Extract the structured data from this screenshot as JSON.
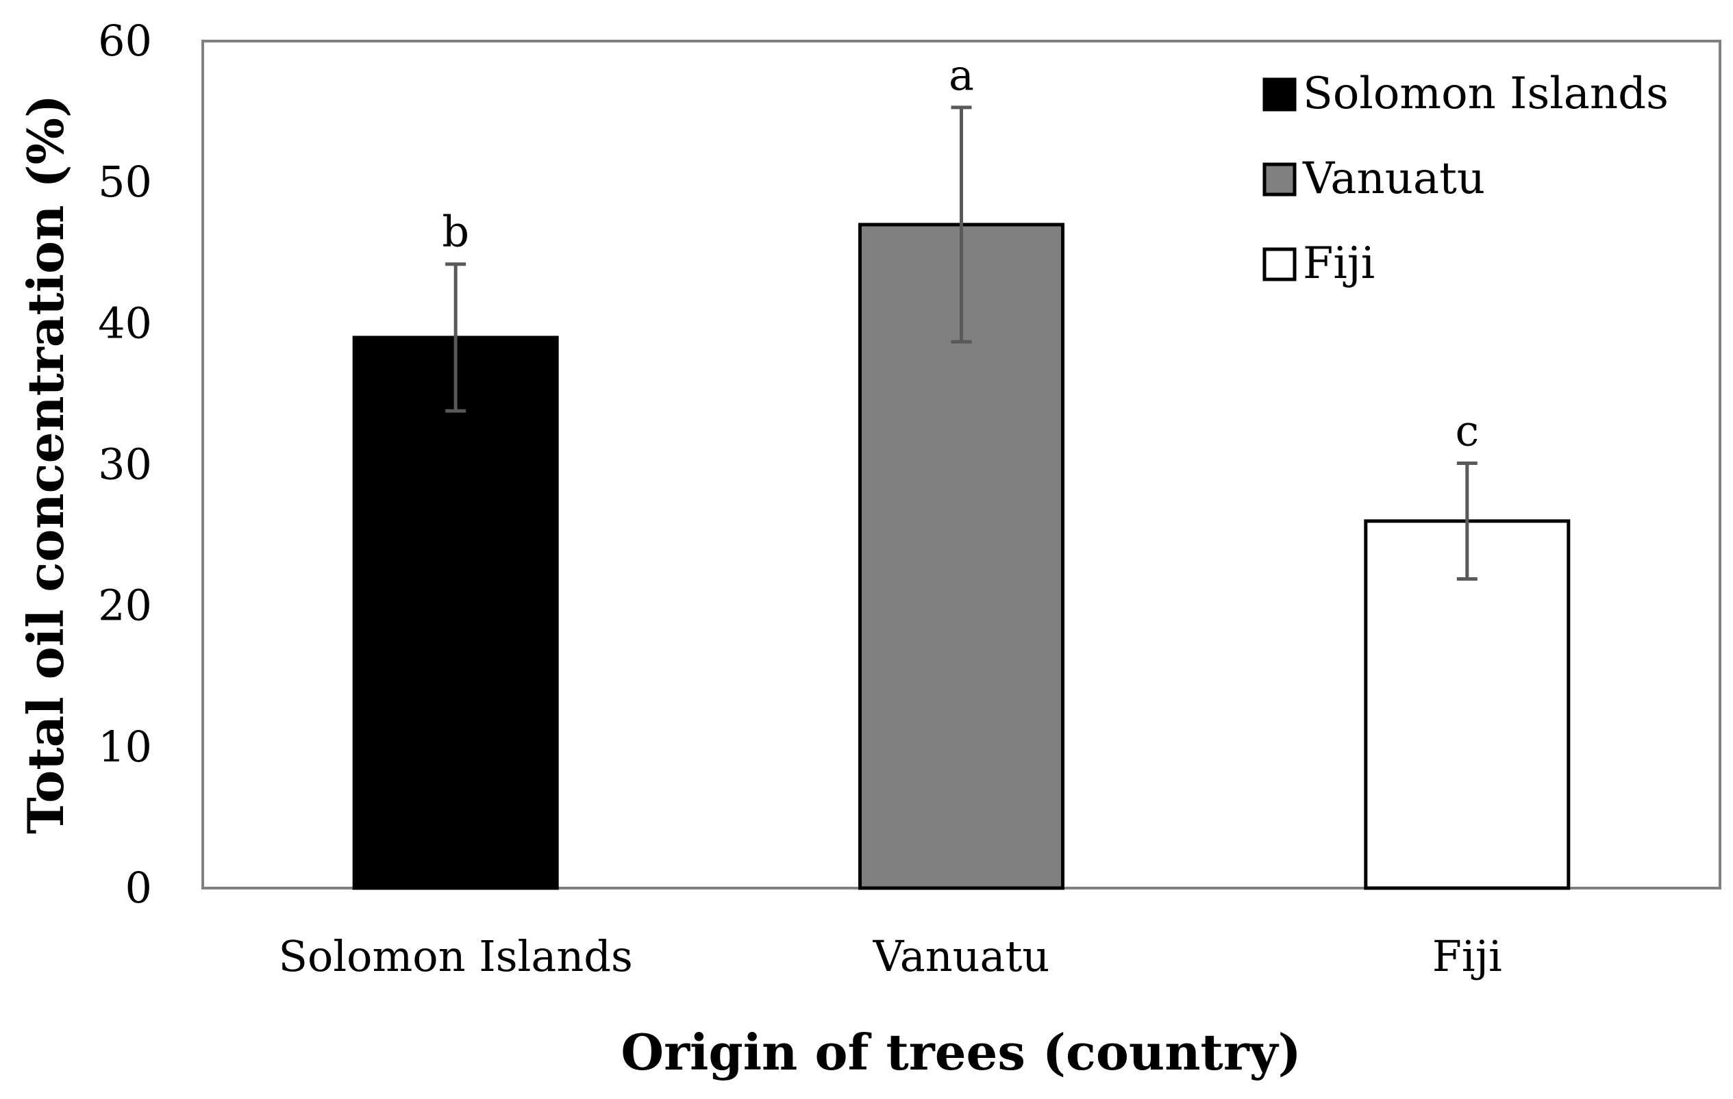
{
  "chart_data": {
    "type": "bar",
    "categories": [
      "Solomon Islands",
      "Vanuatu",
      "Fiji"
    ],
    "values": [
      39,
      47,
      26
    ],
    "errors": [
      5.2,
      8.3,
      4.1
    ],
    "significance_letters": [
      "b",
      "a",
      "c"
    ],
    "colors": [
      "#000000",
      "#808080",
      "#ffffff"
    ],
    "xlabel": "Origin of trees (country)",
    "ylabel": "Total oil concentration (%)",
    "ylim": [
      0,
      60
    ],
    "yticks": [
      "0",
      "10",
      "20",
      "30",
      "40",
      "50",
      "60"
    ],
    "grid": false,
    "legend": {
      "placement": "top-right",
      "entries": [
        "Solomon Islands",
        "Vanuatu",
        "Fiji"
      ]
    }
  }
}
